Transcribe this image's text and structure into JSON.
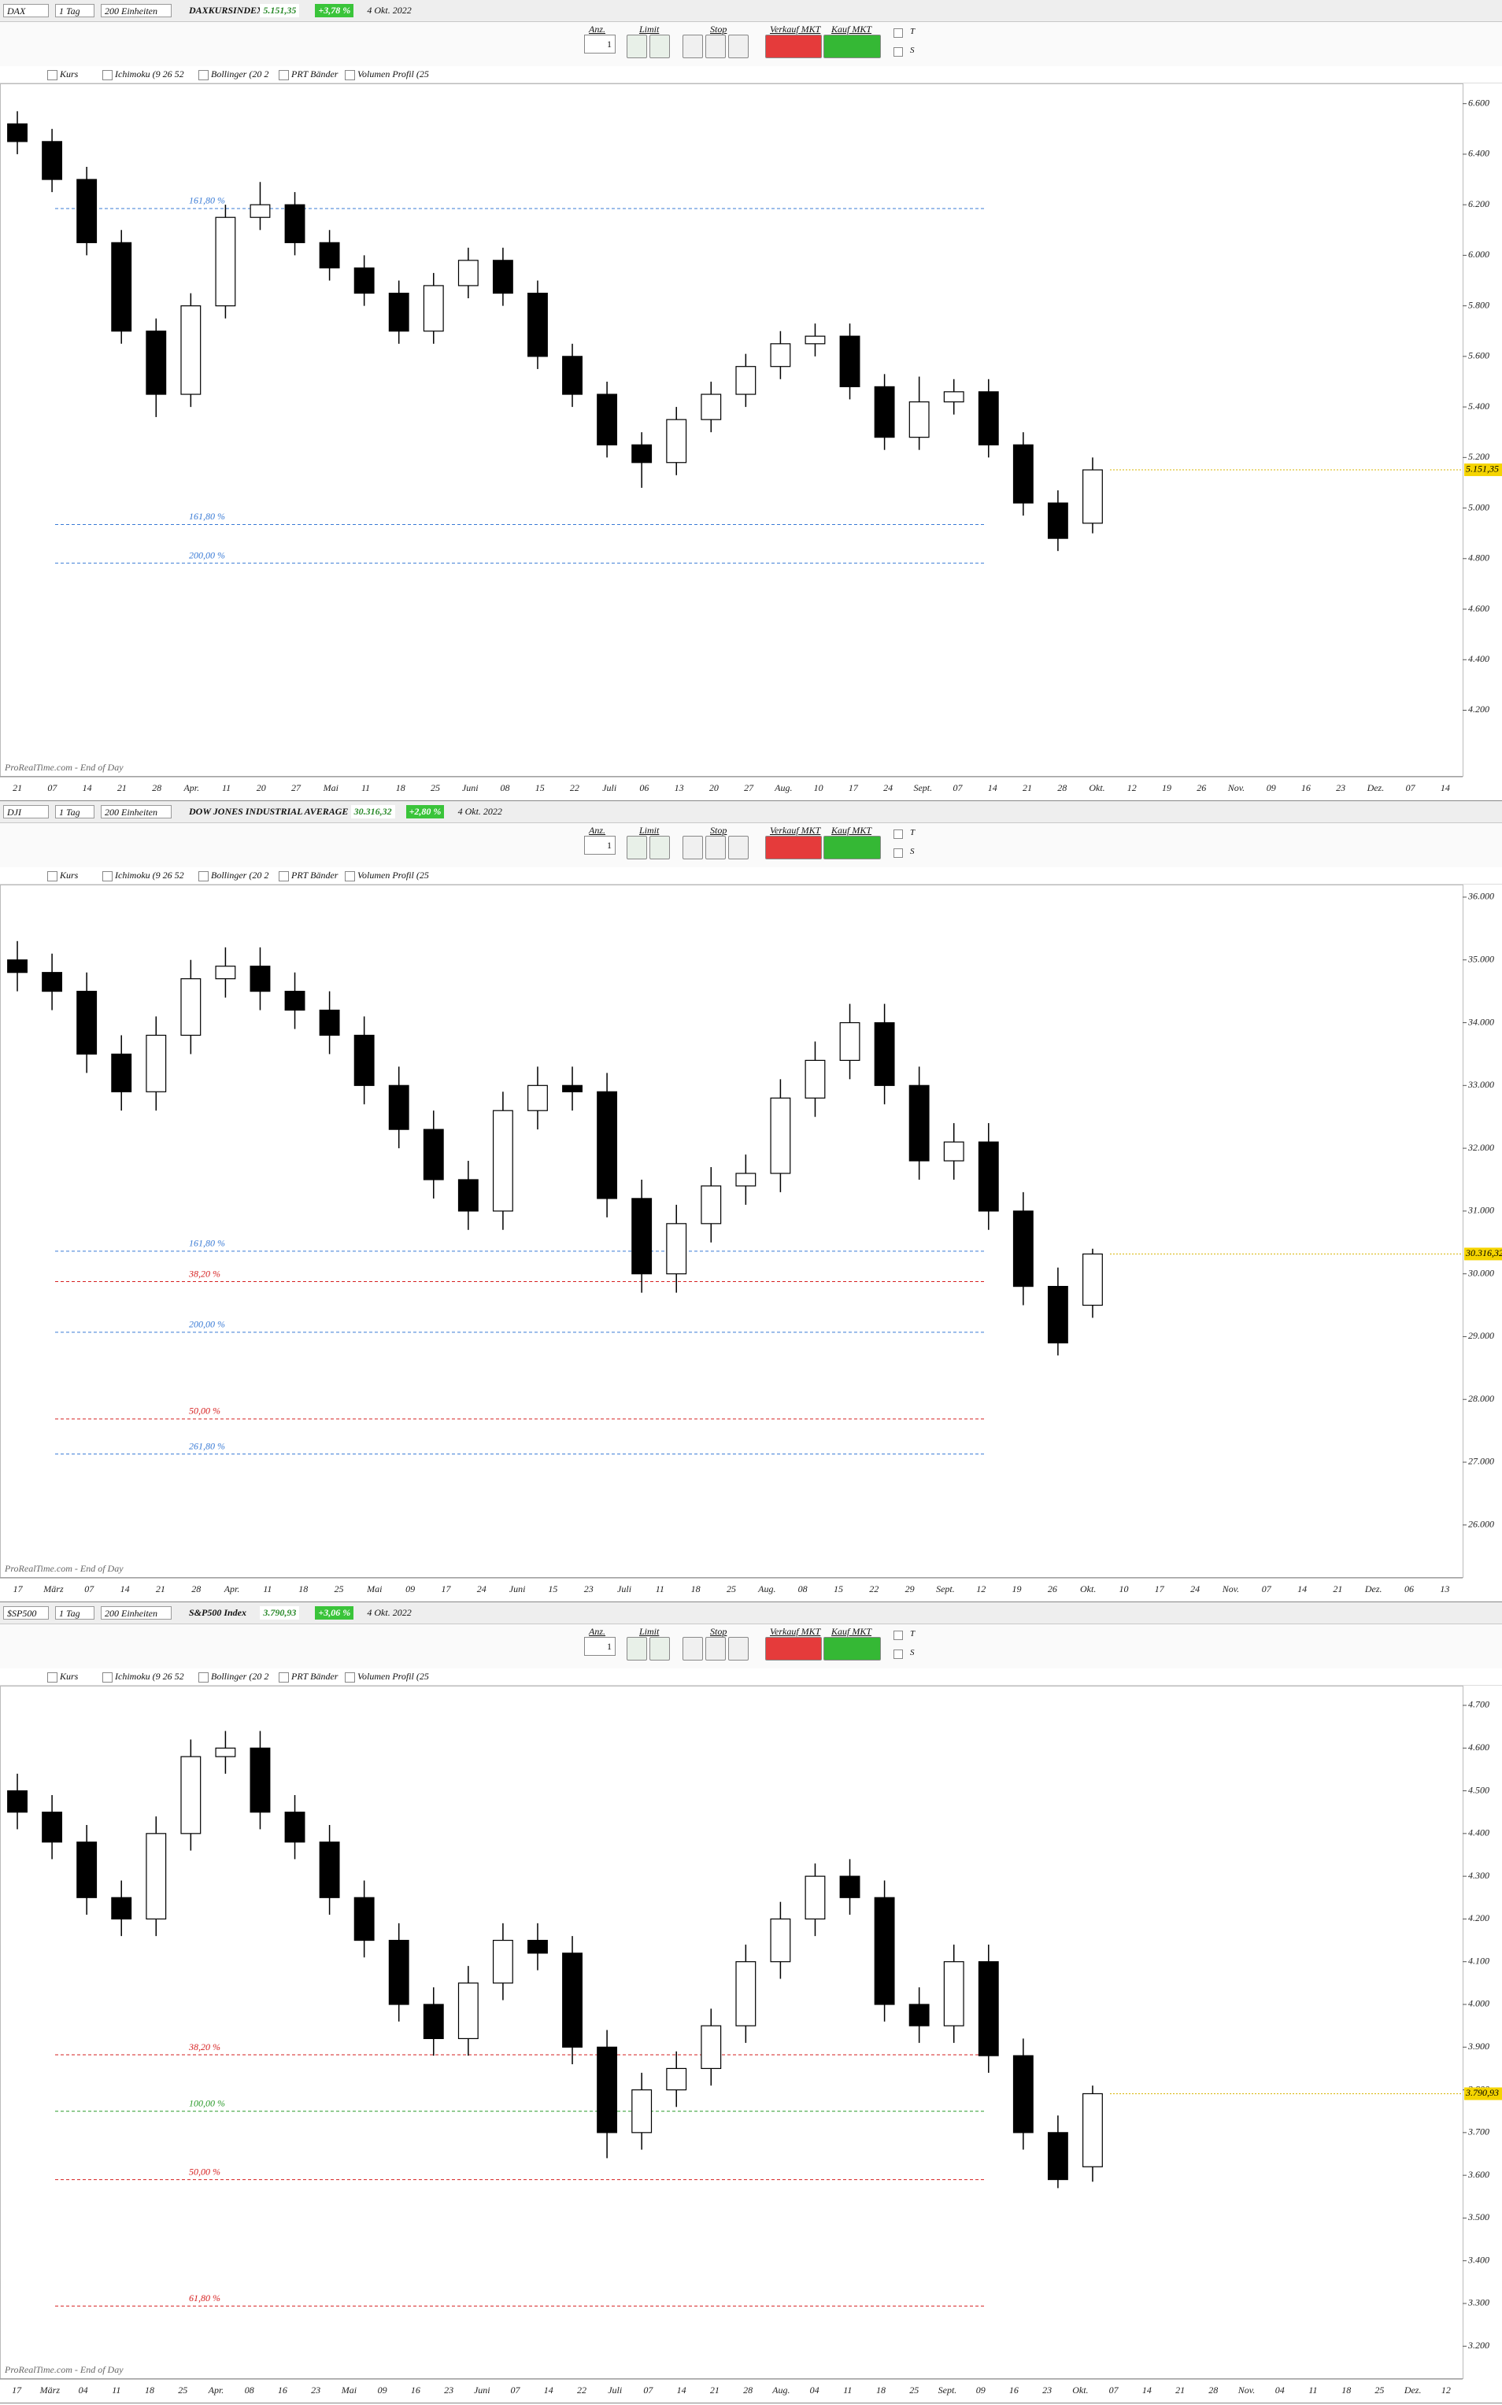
{
  "ui": {
    "interval": "1 Tag",
    "units": "200 Einheiten",
    "quantity_label": "Anz.",
    "quantity": "1",
    "limit_label": "Limit",
    "stop_label": "Stop",
    "sell_label": "Verkauf MKT",
    "buy_label": "Kauf MKT",
    "t_label": "T",
    "s_label": "S",
    "indicators": [
      "Kurs",
      "Ichimoku (9 26 52",
      "Bollinger (20 2",
      "PRT Bänder",
      "Volumen Profil (25"
    ],
    "footer": "ProRealTime.com - End of Day"
  },
  "chart_data": [
    {
      "type": "candlestick",
      "symbol": "DAX",
      "name": "DAXKURSINDEX",
      "last": {
        "value": 5151.35,
        "label": "5.151,35"
      },
      "change": "+3,78 %",
      "date": "4 Okt. 2022",
      "ylim": [
        3940,
        6680
      ],
      "yticks": [
        {
          "value": 4200,
          "label": "4.200"
        },
        {
          "value": 4400,
          "label": "4.400"
        },
        {
          "value": 4600,
          "label": "4.600"
        },
        {
          "value": 4800,
          "label": "4.800"
        },
        {
          "value": 5000,
          "label": "5.000"
        },
        {
          "value": 5200,
          "label": "5.200"
        },
        {
          "value": 5400,
          "label": "5.400"
        },
        {
          "value": 5600,
          "label": "5.600"
        },
        {
          "value": 5800,
          "label": "5.800"
        },
        {
          "value": 6000,
          "label": "6.000"
        },
        {
          "value": 6200,
          "label": "6.200"
        },
        {
          "value": 6400,
          "label": "6.400"
        },
        {
          "value": 6600,
          "label": "6.600"
        }
      ],
      "candles": {
        "open": [
          6520,
          6450,
          6300,
          6050,
          5700,
          5450,
          5800,
          6150,
          6200,
          6050,
          5950,
          5850,
          5700,
          5880,
          5980,
          5850,
          5600,
          5450,
          5250,
          5180,
          5350,
          5450,
          5560,
          5650,
          5680,
          5480,
          5280,
          5420,
          5460,
          5250,
          5020,
          4940
        ],
        "high": [
          6570,
          6500,
          6350,
          6100,
          5750,
          5850,
          6200,
          6290,
          6250,
          6100,
          6000,
          5900,
          5930,
          6030,
          6030,
          5900,
          5650,
          5500,
          5300,
          5400,
          5500,
          5610,
          5700,
          5730,
          5730,
          5530,
          5520,
          5510,
          5510,
          5300,
          5070,
          5200
        ],
        "low": [
          6400,
          6250,
          6000,
          5650,
          5360,
          5400,
          5750,
          6100,
          6000,
          5900,
          5800,
          5650,
          5650,
          5830,
          5800,
          5550,
          5400,
          5200,
          5080,
          5130,
          5300,
          5400,
          5510,
          5600,
          5430,
          5230,
          5230,
          5370,
          5200,
          4970,
          4830,
          4900
        ],
        "close": [
          6450,
          6300,
          6050,
          5700,
          5450,
          5800,
          6150,
          6200,
          6050,
          5950,
          5850,
          5700,
          5880,
          5980,
          5850,
          5600,
          5450,
          5250,
          5180,
          5350,
          5450,
          5560,
          5650,
          5680,
          5480,
          5280,
          5420,
          5460,
          5250,
          5020,
          4880,
          5151
        ]
      },
      "levels": [
        {
          "value": 6185,
          "label": "161,80 %",
          "color": "#3a7bd5"
        },
        {
          "value": 4935,
          "label": "161,80 %",
          "color": "#3a7bd5"
        },
        {
          "value": 4782,
          "label": "200,00 %",
          "color": "#3a7bd5"
        }
      ],
      "date_labels": [
        "21",
        "07",
        "14",
        "21",
        "28",
        "Apr.",
        "11",
        "20",
        "27",
        "Mai",
        "11",
        "18",
        "25",
        "Juni",
        "08",
        "15",
        "22",
        "Juli",
        "06",
        "13",
        "20",
        "27",
        "Aug.",
        "10",
        "17",
        "24",
        "Sept.",
        "07",
        "14",
        "21",
        "28",
        "Okt.",
        "12",
        "19",
        "26",
        "Nov.",
        "09",
        "16",
        "23",
        "Dez.",
        "07",
        "14"
      ]
    },
    {
      "type": "candlestick",
      "symbol": "DJI",
      "name": "DOW JONES INDUSTRIAL AVERAGE",
      "last": {
        "value": 30316.32,
        "label": "30.316,32"
      },
      "change": "+2,80 %",
      "date": "4 Okt. 2022",
      "ylim": [
        25170,
        36200
      ],
      "yticks": [
        {
          "value": 26000,
          "label": "26.000"
        },
        {
          "value": 27000,
          "label": "27.000"
        },
        {
          "value": 28000,
          "label": "28.000"
        },
        {
          "value": 29000,
          "label": "29.000"
        },
        {
          "value": 30000,
          "label": "30.000"
        },
        {
          "value": 31000,
          "label": "31.000"
        },
        {
          "value": 32000,
          "label": "32.000"
        },
        {
          "value": 33000,
          "label": "33.000"
        },
        {
          "value": 34000,
          "label": "34.000"
        },
        {
          "value": 35000,
          "label": "35.000"
        },
        {
          "value": 36000,
          "label": "36.000"
        }
      ],
      "candles": {
        "open": [
          35000,
          34800,
          34500,
          33500,
          32900,
          33800,
          34700,
          34900,
          34500,
          34200,
          33800,
          33000,
          32300,
          31500,
          31000,
          32600,
          33000,
          32900,
          31200,
          30000,
          30800,
          31400,
          31600,
          32800,
          33400,
          34000,
          33000,
          31800,
          32100,
          31000,
          29800,
          29500
        ],
        "high": [
          35300,
          35100,
          34800,
          33800,
          34100,
          35000,
          35200,
          35200,
          34800,
          34500,
          34100,
          33300,
          32600,
          31800,
          32900,
          33300,
          33300,
          33200,
          31500,
          31100,
          31700,
          31900,
          33100,
          33700,
          34300,
          34300,
          33300,
          32400,
          32400,
          31300,
          30100,
          30400
        ],
        "low": [
          34500,
          34200,
          33200,
          32600,
          32600,
          33500,
          34400,
          34200,
          33900,
          33500,
          32700,
          32000,
          31200,
          30700,
          30700,
          32300,
          32600,
          30900,
          29700,
          29700,
          30500,
          31100,
          31300,
          32500,
          33100,
          32700,
          31500,
          31500,
          30700,
          29500,
          28700,
          29300
        ],
        "close": [
          34800,
          34500,
          33500,
          32900,
          33800,
          34700,
          34900,
          34500,
          34200,
          33800,
          33000,
          32300,
          31500,
          31000,
          32600,
          33000,
          32900,
          31200,
          30000,
          30800,
          31400,
          31600,
          32800,
          33400,
          34000,
          33000,
          31800,
          32100,
          31000,
          29800,
          28900,
          30316
        ]
      },
      "levels": [
        {
          "value": 30360,
          "label": "161,80 %",
          "color": "#3a7bd5"
        },
        {
          "value": 29876,
          "label": "38,20 %",
          "color": "#d62020"
        },
        {
          "value": 29070,
          "label": "200,00 %",
          "color": "#3a7bd5"
        },
        {
          "value": 27690,
          "label": "50,00 %",
          "color": "#d62020"
        },
        {
          "value": 27130,
          "label": "261,80 %",
          "color": "#3a7bd5"
        }
      ],
      "date_labels": [
        "17",
        "März",
        "07",
        "14",
        "21",
        "28",
        "Apr.",
        "11",
        "18",
        "25",
        "Mai",
        "09",
        "17",
        "24",
        "Juni",
        "15",
        "23",
        "Juli",
        "11",
        "18",
        "25",
        "Aug.",
        "08",
        "15",
        "22",
        "29",
        "Sept.",
        "12",
        "19",
        "26",
        "Okt.",
        "10",
        "17",
        "24",
        "Nov.",
        "07",
        "14",
        "21",
        "Dez.",
        "06",
        "13"
      ]
    },
    {
      "type": "candlestick",
      "symbol": "$SP500",
      "name": "S&P500 Index",
      "last": {
        "value": 3790.93,
        "label": "3.790,93"
      },
      "change": "+3,06 %",
      "date": "4 Okt. 2022",
      "ylim": [
        3125,
        4746
      ],
      "yticks": [
        {
          "value": 3200,
          "label": "3.200"
        },
        {
          "value": 3300,
          "label": "3.300"
        },
        {
          "value": 3400,
          "label": "3.400"
        },
        {
          "value": 3500,
          "label": "3.500"
        },
        {
          "value": 3600,
          "label": "3.600"
        },
        {
          "value": 3700,
          "label": "3.700"
        },
        {
          "value": 3800,
          "label": "3.800"
        },
        {
          "value": 3900,
          "label": "3.900"
        },
        {
          "value": 4000,
          "label": "4.000"
        },
        {
          "value": 4100,
          "label": "4.100"
        },
        {
          "value": 4200,
          "label": "4.200"
        },
        {
          "value": 4300,
          "label": "4.300"
        },
        {
          "value": 4400,
          "label": "4.400"
        },
        {
          "value": 4500,
          "label": "4.500"
        },
        {
          "value": 4600,
          "label": "4.600"
        },
        {
          "value": 4700,
          "label": "4.700"
        }
      ],
      "candles": {
        "open": [
          4500,
          4450,
          4380,
          4250,
          4200,
          4400,
          4580,
          4600,
          4450,
          4380,
          4250,
          4150,
          4000,
          3920,
          4050,
          4150,
          4120,
          3900,
          3700,
          3800,
          3850,
          3950,
          4100,
          4200,
          4300,
          4250,
          4000,
          3950,
          4100,
          3880,
          3700,
          3620
        ],
        "high": [
          4540,
          4490,
          4420,
          4290,
          4440,
          4620,
          4640,
          4640,
          4490,
          4420,
          4290,
          4190,
          4040,
          4090,
          4190,
          4190,
          4160,
          3940,
          3840,
          3890,
          3990,
          4140,
          4240,
          4330,
          4340,
          4290,
          4040,
          4140,
          4140,
          3920,
          3740,
          3810
        ],
        "low": [
          4410,
          4340,
          4210,
          4160,
          4160,
          4360,
          4540,
          4410,
          4340,
          4210,
          4110,
          3960,
          3880,
          3880,
          4010,
          4080,
          3860,
          3640,
          3660,
          3760,
          3810,
          3910,
          4060,
          4160,
          4210,
          3960,
          3910,
          3910,
          3840,
          3660,
          3570,
          3585
        ],
        "close": [
          4450,
          4380,
          4250,
          4200,
          4400,
          4580,
          4600,
          4450,
          4380,
          4250,
          4150,
          4000,
          3920,
          4050,
          4150,
          4120,
          3900,
          3700,
          3800,
          3850,
          3950,
          4100,
          4200,
          4300,
          4250,
          4000,
          3950,
          4100,
          3880,
          3700,
          3590,
          3791
        ]
      },
      "levels": [
        {
          "value": 3882,
          "label": "38,20 %",
          "color": "#d62020"
        },
        {
          "value": 3750,
          "label": "100,00 %",
          "color": "#2a9a2a"
        },
        {
          "value": 3590,
          "label": "50,00 %",
          "color": "#d62020"
        },
        {
          "value": 3294,
          "label": "61,80 %",
          "color": "#d62020"
        }
      ],
      "date_labels": [
        "17",
        "März",
        "04",
        "11",
        "18",
        "25",
        "Apr.",
        "08",
        "16",
        "23",
        "Mai",
        "09",
        "16",
        "23",
        "Juni",
        "07",
        "14",
        "22",
        "Juli",
        "07",
        "14",
        "21",
        "28",
        "Aug.",
        "04",
        "11",
        "18",
        "25",
        "Sept.",
        "09",
        "16",
        "23",
        "Okt.",
        "07",
        "14",
        "21",
        "28",
        "Nov.",
        "04",
        "11",
        "18",
        "25",
        "Dez.",
        "12"
      ]
    }
  ]
}
